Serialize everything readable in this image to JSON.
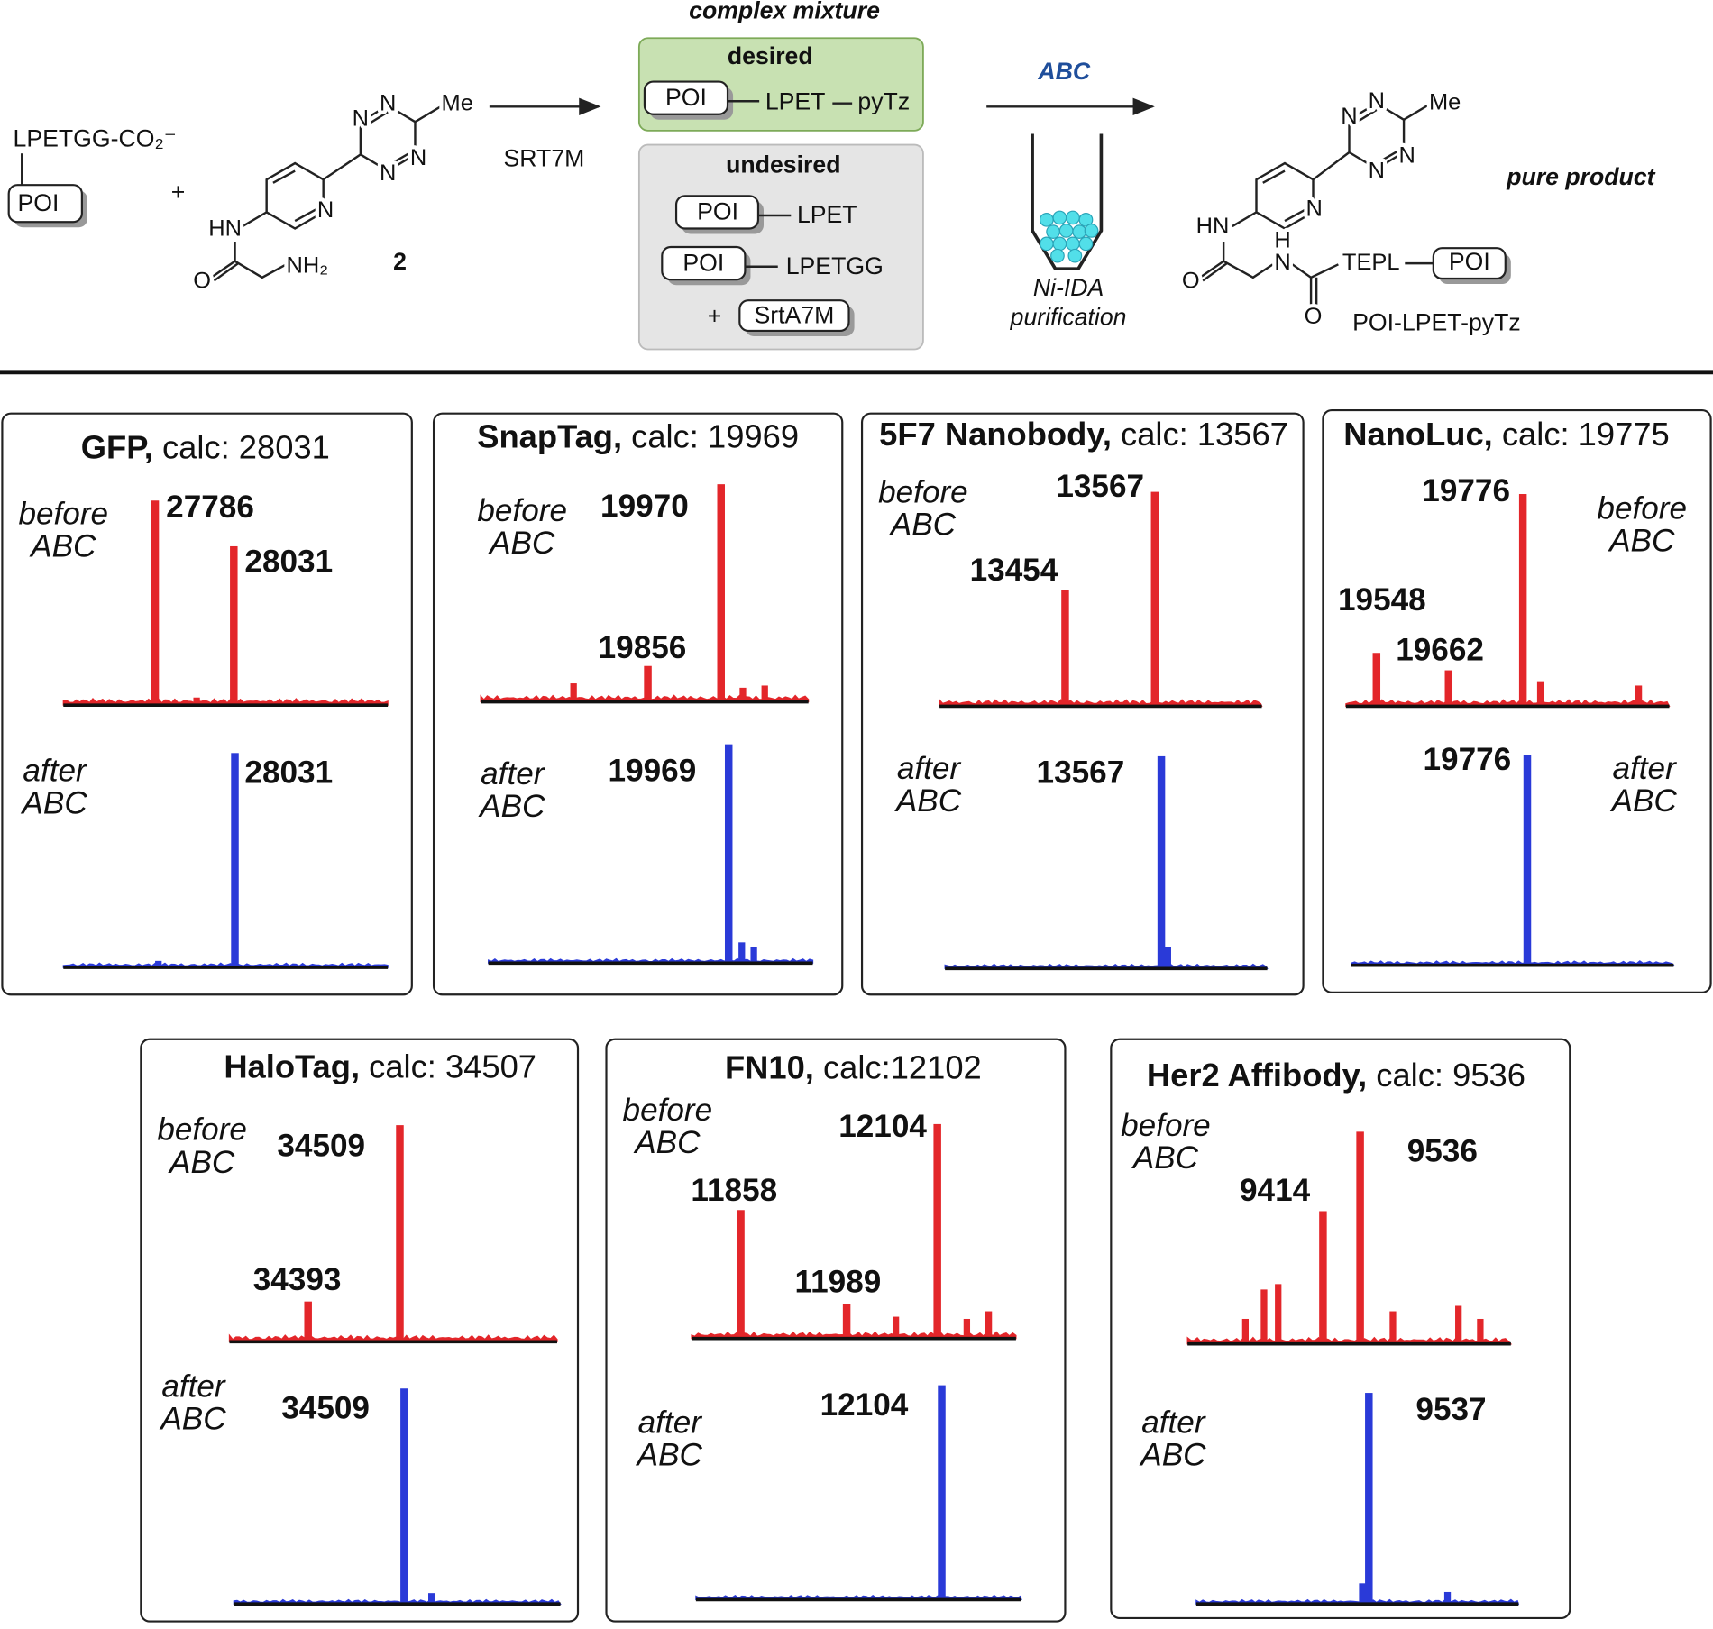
{
  "reactant_1": {
    "substrate": "LPETGG-CO₂⁻",
    "tag": "POI"
  },
  "plus": "+",
  "compound_2": {
    "atoms": [
      "N",
      "N",
      "N",
      "N",
      "Me",
      "HN",
      "N",
      "O",
      "NH₂"
    ],
    "label": "2"
  },
  "step_1": {
    "reagent": "SRT7M"
  },
  "mixture": {
    "title": "complex mixture",
    "desired": {
      "label": "desired",
      "tag": "POI",
      "linker": "LPET",
      "handle": "pyTz"
    },
    "undesired": {
      "label": "undesired",
      "items": [
        {
          "tag": "POI",
          "linker": "LPET"
        },
        {
          "tag": "POI",
          "linker": "LPETGG"
        }
      ],
      "plus": "+",
      "enzyme": "SrtA7M"
    }
  },
  "step_2": {
    "method": "ABC",
    "resin": "Ni-IDA",
    "resin_note": "purification"
  },
  "product": {
    "atoms": [
      "N",
      "N",
      "N",
      "N",
      "Me",
      "HN",
      "N",
      "O",
      "H",
      "N",
      "O"
    ],
    "linker": "TEPL",
    "tag": "POI",
    "name": "POI-LPET-pyTz",
    "note": "pure product"
  },
  "panels": [
    {
      "protein": "GFP,",
      "calc": " calc: 28031",
      "before": [
        "before",
        "ABC"
      ],
      "after": [
        "after",
        "ABC"
      ],
      "before_peaks": [
        "27786",
        "28031"
      ],
      "after_peaks": [
        "28031"
      ]
    },
    {
      "protein": "SnapTag,",
      "calc": " calc: 19969",
      "before": [
        "before",
        "ABC"
      ],
      "after": [
        "after",
        "ABC"
      ],
      "before_peaks": [
        "19970",
        "19856"
      ],
      "after_peaks": [
        "19969"
      ]
    },
    {
      "protein": "5F7 Nanobody,",
      "calc": " calc: 13567",
      "before": [
        "before",
        "ABC"
      ],
      "after": [
        "after",
        "ABC"
      ],
      "before_peaks": [
        "13454",
        "13567"
      ],
      "after_peaks": [
        "13567"
      ]
    },
    {
      "protein": "NanoLuc,",
      "calc": " calc: 19775",
      "before": [
        "before",
        "ABC"
      ],
      "after": [
        "after",
        "ABC"
      ],
      "before_peaks": [
        "19776",
        "19548",
        "19662"
      ],
      "after_peaks": [
        "19776"
      ]
    },
    {
      "protein": "HaloTag,",
      "calc": " calc: 34507",
      "before": [
        "before",
        "ABC"
      ],
      "after": [
        "after",
        "ABC"
      ],
      "before_peaks": [
        "34509",
        "34393"
      ],
      "after_peaks": [
        "34509"
      ]
    },
    {
      "protein": "FN10,",
      "calc": " calc:12102",
      "before": [
        "before",
        "ABC"
      ],
      "after": [
        "after",
        "ABC"
      ],
      "before_peaks": [
        "11858",
        "11989",
        "12104"
      ],
      "after_peaks": [
        "12104"
      ]
    },
    {
      "protein": "Her2 Affibody,",
      "calc": " calc: 9536",
      "before": [
        "before",
        "ABC"
      ],
      "after": [
        "after",
        "ABC"
      ],
      "before_peaks": [
        "9536",
        "9414"
      ],
      "after_peaks": [
        "9537"
      ]
    }
  ]
}
